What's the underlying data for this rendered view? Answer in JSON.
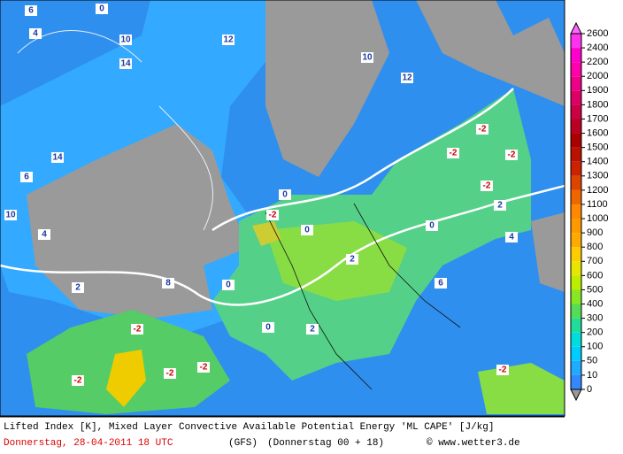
{
  "map": {
    "labels": [
      "6",
      "0",
      "4",
      "10",
      "14",
      "12",
      "10",
      "12",
      "6",
      "14",
      "10",
      "4",
      "2",
      "8",
      "-2",
      "-2",
      "-2",
      "-2",
      "-2",
      "0",
      "0",
      "2",
      "-2",
      "-2",
      "-2",
      "-2",
      "0",
      "2",
      "4",
      "-2",
      "0",
      "2",
      "6",
      "0"
    ]
  },
  "colorbar": {
    "ticks": [
      0,
      10,
      50,
      100,
      200,
      300,
      400,
      500,
      600,
      700,
      800,
      900,
      1000,
      1100,
      1200,
      1300,
      1400,
      1500,
      1600,
      1700,
      1800,
      1900,
      2000,
      2200,
      2400,
      2600
    ],
    "colors": [
      "#3388ff",
      "#22aaff",
      "#00ccff",
      "#00dddd",
      "#22dd99",
      "#55dd55",
      "#88e622",
      "#bbee00",
      "#e6e600",
      "#ffcc00",
      "#ffaa00",
      "#ff9900",
      "#ff8800",
      "#ee6600",
      "#dd4400",
      "#cc2200",
      "#bb1100",
      "#aa0000",
      "#bb0022",
      "#cc0044",
      "#dd0066",
      "#ee0088",
      "#ff00aa",
      "#ff00cc",
      "#ff33ee"
    ],
    "top_color": "#ff66ff",
    "bottom_color": "#999999"
  },
  "footer": {
    "line1": "Lifted Index [K], Mixed Layer Convective Available Potential Energy 'ML CAPE' [J/kg]",
    "date": "Donnerstag, 28-04-2011   18 UTC",
    "model": "(GFS)",
    "run": "(Donnerstag 00 + 18)",
    "credit": "© www.wetter3.de"
  }
}
